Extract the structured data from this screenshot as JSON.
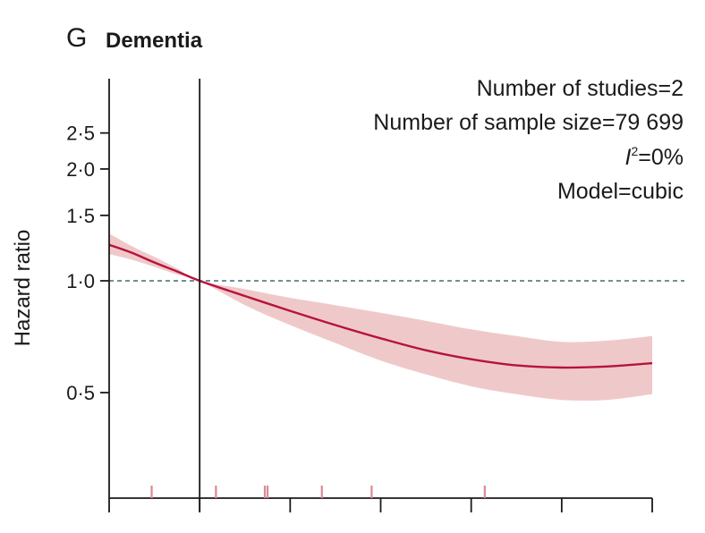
{
  "panel": {
    "letter": "G",
    "title": "Dementia"
  },
  "annotations": {
    "studies": "Number of studies=2",
    "sample": "Number of sample size=79 699",
    "i2_symbol": "I",
    "i2_sup": "2",
    "i2_value": "=0%",
    "model": "Model=cubic"
  },
  "colors": {
    "curve": "#b8123c",
    "band": "#efc9c9",
    "reference": "#3f6d6d",
    "rug": "#d98a95",
    "axis": "#1a1a1a"
  },
  "chart_data": {
    "type": "line",
    "title": "Dementia",
    "ylabel": "Hazard ratio",
    "xlabel": "",
    "y_scale": "log",
    "ylim": [
      0.26,
      3.5
    ],
    "y_ticks": [
      0.5,
      1.0,
      1.5,
      2.0,
      2.5
    ],
    "y_tick_labels": [
      "0·5",
      "1·0",
      "1·5",
      "2·0",
      "2·5"
    ],
    "x_ticks": [
      0,
      1,
      2,
      3,
      4,
      5,
      6
    ],
    "x_tick_labels": [
      "",
      "",
      "",
      "",
      "",
      "",
      ""
    ],
    "xlim": [
      0,
      6
    ],
    "reference_x": 1,
    "reference_hr": 1.0,
    "series": [
      {
        "x": [
          0.0,
          0.25,
          0.5,
          0.75,
          1.0,
          1.5,
          2.0,
          2.5,
          3.0,
          3.5,
          4.0,
          4.5,
          5.0,
          5.5,
          6.0
        ],
        "hr": [
          1.25,
          1.19,
          1.12,
          1.06,
          1.0,
          0.91,
          0.83,
          0.76,
          0.7,
          0.65,
          0.615,
          0.592,
          0.584,
          0.588,
          0.6
        ],
        "lower": [
          1.18,
          1.14,
          1.09,
          1.04,
          1.0,
          0.86,
          0.76,
          0.68,
          0.61,
          0.56,
          0.52,
          0.495,
          0.478,
          0.478,
          0.495
        ],
        "upper": [
          1.34,
          1.24,
          1.16,
          1.08,
          1.0,
          0.95,
          0.9,
          0.86,
          0.82,
          0.78,
          0.74,
          0.71,
          0.685,
          0.69,
          0.71
        ]
      }
    ],
    "rug": [
      0.47,
      1.18,
      1.72,
      1.75,
      2.35,
      2.9,
      4.15
    ]
  }
}
